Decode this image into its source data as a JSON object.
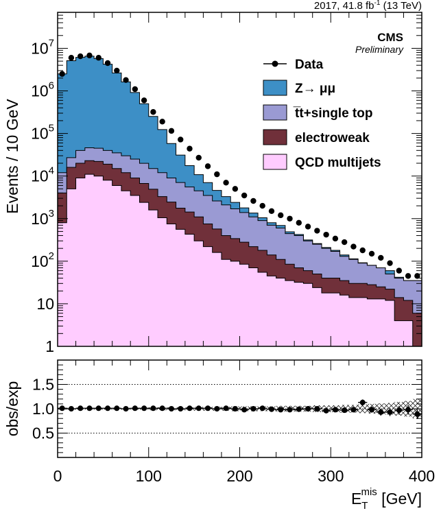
{
  "header": {
    "lumi_prefix": "2017, 41.8 fb",
    "lumi_exp": "-1",
    "lumi_suffix": " (13 TeV)",
    "experiment": "CMS",
    "status": "Preliminary"
  },
  "chart_data": {
    "type": "stacked-histogram",
    "bin_width": 10,
    "bin_edges": [
      0,
      400
    ],
    "xlabel_base": "E",
    "xlabel_sub": "T",
    "xlabel_sup": "mis",
    "xlabel_unit": " [GeV]",
    "ylabel": "Events / 10 GeV",
    "ylog": true,
    "ylim": [
      1,
      70000000
    ],
    "xlim": [
      0,
      400
    ],
    "xticks": [
      "0",
      "100",
      "200",
      "300",
      "400"
    ],
    "yticks": [
      {
        "value": 1,
        "base": "1",
        "exp": ""
      },
      {
        "value": 10,
        "base": "10",
        "exp": ""
      },
      {
        "value": 100,
        "base": "10",
        "exp": "2"
      },
      {
        "value": 1000,
        "base": "10",
        "exp": "3"
      },
      {
        "value": 10000,
        "base": "10",
        "exp": "4"
      },
      {
        "value": 100000,
        "base": "10",
        "exp": "5"
      },
      {
        "value": 1000000,
        "base": "10",
        "exp": "6"
      },
      {
        "value": 10000000,
        "base": "10",
        "exp": "7"
      }
    ],
    "legend_position": "top-right",
    "series": [
      {
        "name": "QCD multijets",
        "color": "#ffccff",
        "values": [
          800,
          5000,
          9000,
          11000,
          10000,
          8000,
          6000,
          4500,
          3500,
          2400,
          1600,
          1050,
          750,
          560,
          430,
          300,
          220,
          160,
          110,
          100,
          85,
          70,
          55,
          45,
          40,
          35,
          32,
          30,
          24,
          18,
          18,
          16,
          14,
          14,
          13,
          13,
          12,
          4,
          4,
          1
        ]
      },
      {
        "name": "electroweak",
        "color": "#70303a",
        "values": [
          3200,
          11000,
          11000,
          12000,
          12000,
          11000,
          9000,
          7500,
          5500,
          4300,
          3300,
          2250,
          1700,
          1200,
          1000,
          800,
          530,
          410,
          290,
          240,
          195,
          150,
          125,
          95,
          70,
          50,
          38,
          30,
          26,
          22,
          22,
          19,
          16,
          16,
          15,
          12,
          10,
          10,
          8,
          5
        ]
      },
      {
        "name": "t̅t+single top",
        "color": "#9a9ad3",
        "values": [
          8000,
          11000,
          20000,
          23000,
          23000,
          21000,
          20000,
          18000,
          16000,
          13200,
          10100,
          8700,
          6550,
          5300,
          4100,
          3400,
          2750,
          2030,
          1700,
          1360,
          1110,
          880,
          720,
          560,
          490,
          360,
          330,
          240,
          200,
          160,
          130,
          95,
          80,
          60,
          52,
          45,
          28,
          26,
          23,
          29
        ]
      },
      {
        "name": "Z→ μμ",
        "color": "#3d8fc6",
        "values": [
          2500000,
          5100000,
          6100000,
          6500000,
          5700000,
          4200000,
          2600000,
          1600000,
          890000,
          480000,
          236000,
          112000,
          49000,
          24000,
          12000,
          6300,
          3500,
          2000,
          1200,
          700,
          400,
          250,
          150,
          100,
          90,
          45,
          25,
          15,
          10,
          10,
          10,
          10,
          4,
          2,
          0,
          0,
          10,
          2,
          0,
          0
        ]
      }
    ],
    "data_points": {
      "name": "Data",
      "values": [
        2500000,
        6000000,
        6500000,
        6800000,
        6000000,
        4500000,
        3000000,
        1800000,
        1100000,
        600000,
        320000,
        190000,
        115000,
        72000,
        44000,
        27000,
        17000,
        11000,
        7000,
        5000,
        3500,
        2600,
        2000,
        1500,
        1200,
        1000,
        800,
        650,
        520,
        420,
        340,
        280,
        220,
        180,
        150,
        120,
        90,
        60,
        45,
        45
      ]
    },
    "ratio": {
      "ylabel": "obs/exp",
      "ylim": [
        0,
        2.0
      ],
      "yticks": [
        "0.5",
        "1.0",
        "1.5"
      ],
      "reference_lines": [
        0.5,
        1.0,
        1.5
      ],
      "values": [
        1.01,
        1.0,
        1.01,
        1.01,
        1.01,
        1.01,
        1.01,
        1.0,
        1.01,
        1.01,
        1.01,
        1.01,
        1.0,
        1.0,
        1.01,
        1.01,
        1.01,
        1.0,
        1.01,
        1.0,
        0.98,
        1.0,
        1.01,
        0.99,
        0.98,
        0.98,
        0.99,
        1.0,
        1.0,
        0.96,
        0.98,
        0.97,
        0.98,
        1.13,
        0.98,
        0.93,
        0.93,
        0.97,
        0.98,
        0.89
      ],
      "errors": [
        0.01,
        0.01,
        0.01,
        0.01,
        0.01,
        0.01,
        0.01,
        0.01,
        0.01,
        0.01,
        0.01,
        0.01,
        0.01,
        0.01,
        0.01,
        0.01,
        0.01,
        0.01,
        0.01,
        0.01,
        0.02,
        0.02,
        0.02,
        0.02,
        0.02,
        0.03,
        0.03,
        0.03,
        0.03,
        0.04,
        0.04,
        0.05,
        0.05,
        0.06,
        0.06,
        0.07,
        0.08,
        0.09,
        0.1,
        0.1
      ],
      "syst_band": [
        0.02,
        0.02,
        0.02,
        0.02,
        0.02,
        0.02,
        0.02,
        0.02,
        0.02,
        0.02,
        0.03,
        0.03,
        0.03,
        0.03,
        0.03,
        0.04,
        0.04,
        0.04,
        0.04,
        0.05,
        0.05,
        0.05,
        0.05,
        0.05,
        0.06,
        0.06,
        0.06,
        0.06,
        0.07,
        0.07,
        0.07,
        0.08,
        0.08,
        0.09,
        0.1,
        0.11,
        0.12,
        0.14,
        0.16,
        0.2
      ]
    }
  }
}
